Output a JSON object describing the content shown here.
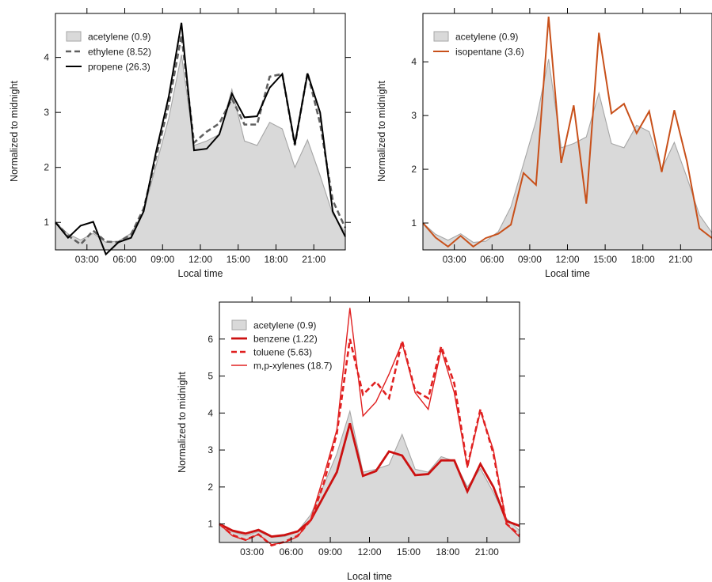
{
  "colors": {
    "background": "#ffffff",
    "area_fill": "#d9d9d9",
    "area_line": "#a6a6a6",
    "frame": "#000000"
  },
  "chart_data": [
    {
      "type": "line",
      "area_series": "acetylene (0.9)",
      "xlabel": "Local time",
      "ylabel": "Normalized to midnight",
      "xlim": [
        0.5,
        23.5
      ],
      "ylim": [
        0.5,
        4.8
      ],
      "xtick_labels": [
        "03:00",
        "06:00",
        "09:00",
        "12:00",
        "15:00",
        "18:00",
        "21:00"
      ],
      "xtick_values": [
        3,
        6,
        9,
        12,
        15,
        18,
        21
      ],
      "ytick_values": [
        1,
        2,
        3,
        4
      ],
      "legend_position": "top-left",
      "x": [
        0.5,
        1.5,
        2.5,
        3.5,
        4.5,
        5.5,
        6.5,
        7.5,
        8.5,
        9.5,
        10.5,
        11.5,
        12.5,
        13.5,
        14.5,
        15.5,
        16.5,
        17.5,
        18.5,
        19.5,
        20.5,
        21.5,
        22.5,
        23.5
      ],
      "series": [
        {
          "name": "acetylene (0.9)",
          "style": "area",
          "color": "#d9d9d9",
          "values": [
            1.0,
            0.79,
            0.68,
            0.8,
            0.64,
            0.66,
            0.8,
            1.2,
            2.05,
            2.9,
            4.05,
            2.4,
            2.48,
            2.6,
            3.42,
            2.48,
            2.4,
            2.82,
            2.7,
            2.0,
            2.5,
            1.85,
            1.15,
            0.82
          ]
        },
        {
          "name": "ethylene (8.52)",
          "style": "dashed",
          "color": "#606060",
          "values": [
            1.0,
            0.76,
            0.6,
            0.85,
            0.65,
            0.64,
            0.78,
            1.25,
            2.2,
            3.15,
            4.4,
            2.45,
            2.65,
            2.8,
            3.25,
            2.78,
            2.78,
            3.65,
            3.7,
            2.4,
            3.72,
            2.8,
            1.4,
            0.9
          ]
        },
        {
          "name": "propene (26.3)",
          "style": "solid",
          "color": "#000000",
          "values": [
            1.0,
            0.72,
            0.94,
            1.01,
            0.42,
            0.64,
            0.72,
            1.2,
            2.3,
            3.3,
            4.63,
            2.31,
            2.34,
            2.6,
            3.34,
            2.91,
            2.93,
            3.45,
            3.7,
            2.42,
            3.71,
            3.0,
            1.2,
            0.74
          ]
        }
      ]
    },
    {
      "type": "line",
      "area_series": "acetylene (0.9)",
      "xlabel": "Local time",
      "ylabel": "Normalized to midnight",
      "xlim": [
        0.5,
        23.5
      ],
      "ylim": [
        0.5,
        4.9
      ],
      "xtick_labels": [
        "03:00",
        "06:00",
        "09:00",
        "12:00",
        "15:00",
        "18:00",
        "21:00"
      ],
      "xtick_values": [
        3,
        6,
        9,
        12,
        15,
        18,
        21
      ],
      "ytick_values": [
        1,
        2,
        3,
        4
      ],
      "legend_position": "top-left",
      "x": [
        0.5,
        1.5,
        2.5,
        3.5,
        4.5,
        5.5,
        6.5,
        7.5,
        8.5,
        9.5,
        10.5,
        11.5,
        12.5,
        13.5,
        14.5,
        15.5,
        16.5,
        17.5,
        18.5,
        19.5,
        20.5,
        21.5,
        22.5,
        23.5
      ],
      "series": [
        {
          "name": "acetylene (0.9)",
          "style": "area",
          "color": "#d9d9d9",
          "values": [
            1.0,
            0.79,
            0.68,
            0.8,
            0.64,
            0.66,
            0.84,
            1.3,
            2.1,
            2.9,
            4.05,
            2.4,
            2.48,
            2.6,
            3.42,
            2.48,
            2.4,
            2.82,
            2.7,
            2.0,
            2.5,
            1.85,
            1.15,
            0.82
          ]
        },
        {
          "name": "isopentane (3.6)",
          "style": "solid",
          "color": "#c8501a",
          "values": [
            1.0,
            0.73,
            0.56,
            0.76,
            0.56,
            0.72,
            0.8,
            0.97,
            1.93,
            1.71,
            4.84,
            2.12,
            3.19,
            1.36,
            4.54,
            3.04,
            3.22,
            2.67,
            3.08,
            1.95,
            3.1,
            2.15,
            0.9,
            0.72
          ]
        }
      ]
    },
    {
      "type": "line",
      "area_series": "acetylene (0.9)",
      "xlabel": "Local time",
      "ylabel": "Normalized to midnight",
      "xlim": [
        0.5,
        23.5
      ],
      "ylim": [
        0.5,
        7.0
      ],
      "xtick_labels": [
        "03:00",
        "06:00",
        "09:00",
        "12:00",
        "15:00",
        "18:00",
        "21:00"
      ],
      "xtick_values": [
        3,
        6,
        9,
        12,
        15,
        18,
        21
      ],
      "ytick_values": [
        1,
        2,
        3,
        4,
        5,
        6
      ],
      "legend_position": "top-left",
      "x": [
        0.5,
        1.5,
        2.5,
        3.5,
        4.5,
        5.5,
        6.5,
        7.5,
        8.5,
        9.5,
        10.5,
        11.5,
        12.5,
        13.5,
        14.5,
        15.5,
        16.5,
        17.5,
        18.5,
        19.5,
        20.5,
        21.5,
        22.5,
        23.5
      ],
      "series": [
        {
          "name": "acetylene (0.9)",
          "style": "area",
          "color": "#d9d9d9",
          "values": [
            1.0,
            0.79,
            0.68,
            0.8,
            0.64,
            0.66,
            0.8,
            1.25,
            2.05,
            2.9,
            4.05,
            2.4,
            2.48,
            2.6,
            3.42,
            2.48,
            2.4,
            2.82,
            2.7,
            2.0,
            2.5,
            1.85,
            1.15,
            0.82
          ]
        },
        {
          "name": "benzene (1.22)",
          "style": "thick",
          "color": "#cc1111",
          "values": [
            1.0,
            0.82,
            0.74,
            0.84,
            0.66,
            0.7,
            0.8,
            1.1,
            1.75,
            2.4,
            3.72,
            2.3,
            2.43,
            2.96,
            2.85,
            2.32,
            2.35,
            2.72,
            2.72,
            1.88,
            2.62,
            2.0,
            1.08,
            0.95
          ]
        },
        {
          "name": "toluene (5.63)",
          "style": "dashed",
          "color": "#e02020",
          "values": [
            1.0,
            0.7,
            0.57,
            0.72,
            0.42,
            0.52,
            0.68,
            1.1,
            2.1,
            3.45,
            6.0,
            4.5,
            4.85,
            4.4,
            5.95,
            4.6,
            4.4,
            5.8,
            4.8,
            2.55,
            4.1,
            2.9,
            1.0,
            0.7
          ]
        },
        {
          "name": "m,p-xylenes (18.7)",
          "style": "thin",
          "color": "#e02020",
          "values": [
            1.0,
            0.68,
            0.56,
            0.72,
            0.44,
            0.5,
            0.66,
            1.12,
            2.3,
            3.55,
            6.84,
            3.92,
            4.3,
            5.05,
            5.9,
            4.55,
            4.1,
            5.72,
            4.55,
            2.52,
            4.05,
            3.0,
            1.0,
            0.65
          ]
        }
      ]
    }
  ]
}
